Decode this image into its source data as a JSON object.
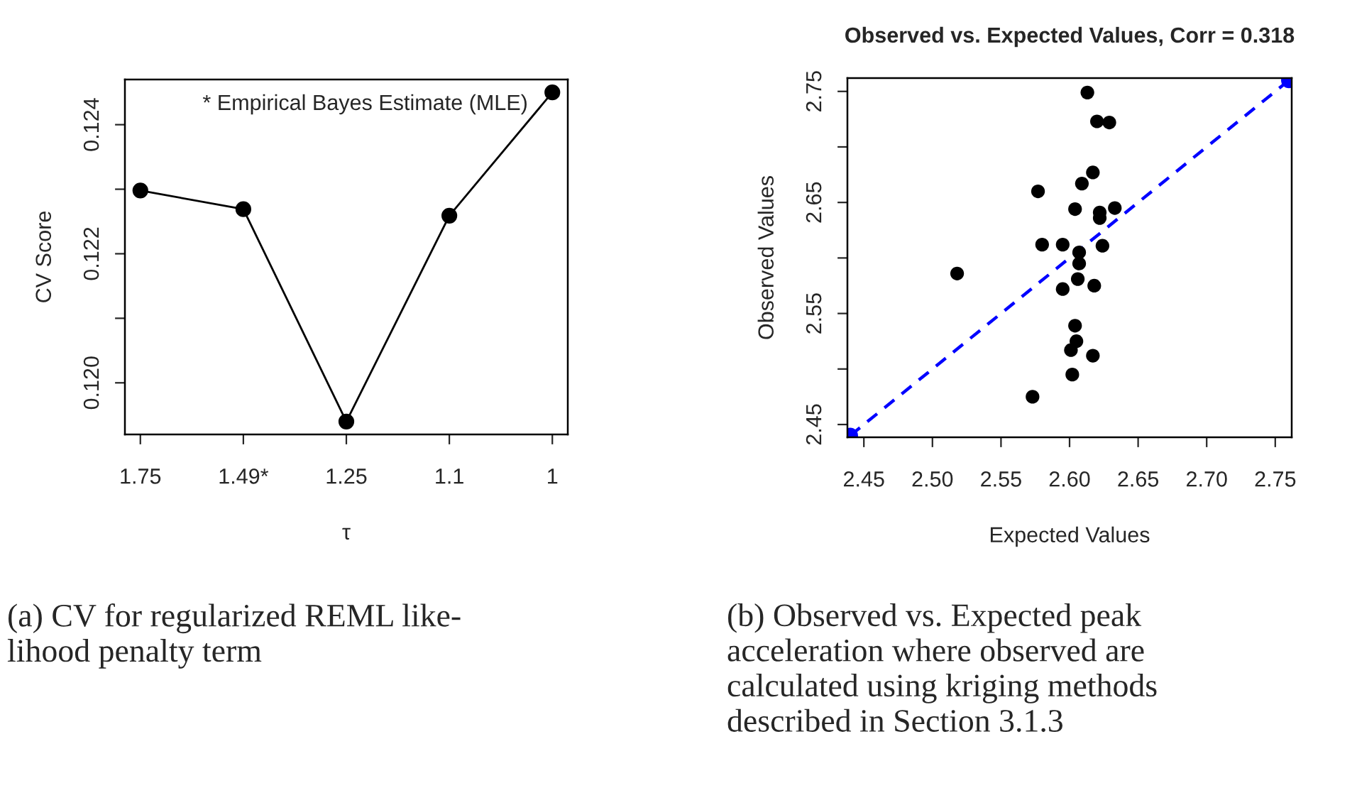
{
  "chart_data": [
    {
      "type": "line",
      "xlabel": "τ",
      "ylabel": "CV Score",
      "categories": [
        "1.75",
        "1.49*",
        "1.25",
        "1.1",
        "1"
      ],
      "series": [
        {
          "color": "#000000",
          "values": [
            0.12298,
            0.12269,
            0.1194,
            0.12259,
            0.1245
          ]
        }
      ],
      "ylim": [
        0.1192,
        0.1247
      ],
      "yticks": [
        {
          "value": 0.12,
          "label": "0.120"
        },
        {
          "value": 0.121,
          "label": null
        },
        0.122,
        {
          "value": 0.123,
          "label": null
        },
        0.124
      ],
      "marker": "circle",
      "line_style": "solid",
      "grid": false,
      "legend": false,
      "annotations": [
        "* Empirical Bayes Estimate (MLE)",
        "(a) CV for regularized REML like-\nlihood penalty term"
      ]
    },
    {
      "type": "scatter",
      "title": "Observed vs. Expected Values, Corr = 0.318",
      "xlabel": "Expected Values",
      "ylabel": "Observed Values",
      "series": [
        {
          "type": "scatter",
          "color": "#000000",
          "x": [
            2.613,
            2.62,
            2.629,
            2.617,
            2.609,
            2.577,
            2.604,
            2.622,
            2.622,
            2.633,
            2.58,
            2.595,
            2.624,
            2.607,
            2.607,
            2.606,
            2.595,
            2.618,
            2.518,
            2.604,
            2.605,
            2.601,
            2.617,
            2.602,
            2.573
          ],
          "values": [
            2.749,
            2.723,
            2.722,
            2.677,
            2.667,
            2.66,
            2.644,
            2.641,
            2.636,
            2.645,
            2.612,
            2.612,
            2.611,
            2.605,
            2.595,
            2.581,
            2.572,
            2.575,
            2.586,
            2.539,
            2.525,
            2.517,
            2.512,
            2.495,
            2.475
          ]
        },
        {
          "type": "line",
          "color": "#0000ff",
          "line_style": "dashed",
          "x": [
            2.44,
            2.76
          ],
          "values": [
            2.44,
            2.76
          ]
        }
      ],
      "xlim": [
        2.438,
        2.762
      ],
      "xticks": [
        2.45,
        {
          "value": 2.5,
          "label": "2.50"
        },
        2.55,
        {
          "value": 2.6,
          "label": "2.60"
        },
        2.65,
        {
          "value": 2.7,
          "label": "2.70"
        },
        2.75
      ],
      "ylim": [
        2.4385,
        2.762
      ],
      "yticks": [
        2.45,
        {
          "value": 2.5,
          "label": null
        },
        2.55,
        {
          "value": 2.6,
          "label": null
        },
        2.65,
        {
          "value": 2.7,
          "label": null
        },
        2.75
      ],
      "marker": "circle",
      "grid": false,
      "legend": false,
      "annotations": [
        "(b) Observed vs. Expected peak\nacceleration where observed are\ncalculated using kriging methods\ndescribed in Section 3.1.3"
      ]
    }
  ]
}
